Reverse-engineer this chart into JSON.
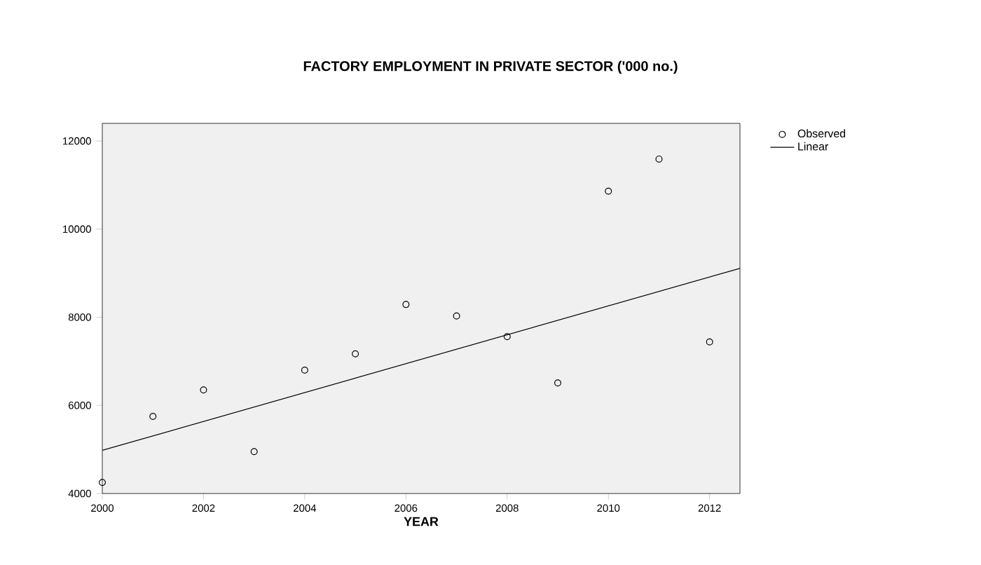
{
  "chart_data": {
    "type": "scatter",
    "title": "FACTORY EMPLOYMENT IN PRIVATE SECTOR ('000 no.)",
    "xlabel": "YEAR",
    "xlim": [
      2000,
      2012.6
    ],
    "xticks": [
      2000,
      2002,
      2004,
      2006,
      2008,
      2010,
      2012
    ],
    "ylim": [
      4000,
      12400
    ],
    "yticks": [
      4000,
      6000,
      8000,
      10000,
      12000
    ],
    "grid": false,
    "legend": "right",
    "series": [
      {
        "name": "Observed",
        "marker": "circle",
        "color": "#000000",
        "x": [
          2000,
          2001,
          2002,
          2003,
          2004,
          2005,
          2006,
          2007,
          2008,
          2009,
          2010,
          2011,
          2012
        ],
        "values": [
          4250,
          5750,
          6350,
          4950,
          6800,
          7170,
          8290,
          8030,
          7560,
          6510,
          10860,
          11590,
          7440
        ]
      },
      {
        "name": "Linear",
        "type": "line",
        "marker": "none",
        "color": "#000000",
        "x": [
          2000,
          2012.6
        ],
        "values": [
          4980,
          9110
        ]
      }
    ]
  }
}
